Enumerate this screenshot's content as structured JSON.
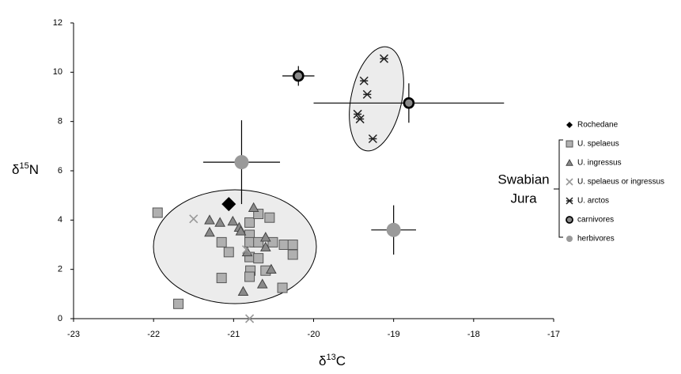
{
  "chart_data": {
    "type": "scatter",
    "xlabel": [
      "δ",
      "13",
      "C"
    ],
    "ylabel": [
      "δ",
      "15",
      "N"
    ],
    "xlim": [
      -23,
      -17
    ],
    "xticks": [
      -23,
      -22,
      -21,
      -20,
      -19,
      -18,
      -17
    ],
    "ylim": [
      0,
      12
    ],
    "yticks": [
      0,
      2,
      4,
      6,
      8,
      10,
      12
    ],
    "group_label": [
      "Swabian",
      "Jura"
    ],
    "series": [
      {
        "name": "Rochedane",
        "marker": "diamond",
        "color": "#000000",
        "x": [
          -21.06
        ],
        "values": [
          4.65
        ]
      },
      {
        "name": "U. spelaeus",
        "marker": "square",
        "color": "#b0b0b0",
        "x": [
          -21.95,
          -21.69,
          -21.15,
          -21.06,
          -21.15,
          -20.8,
          -20.8,
          -20.8,
          -20.8,
          -20.79,
          -20.8,
          -20.69,
          -20.69,
          -20.69,
          -20.55,
          -20.51,
          -20.6,
          -20.39,
          -20.37,
          -20.26,
          -20.26
        ],
        "values": [
          4.3,
          0.6,
          3.1,
          2.7,
          1.65,
          3.9,
          3.4,
          3.1,
          2.5,
          1.95,
          1.7,
          3.1,
          2.45,
          4.25,
          4.1,
          3.1,
          1.95,
          1.25,
          3.0,
          3.0,
          2.6
        ]
      },
      {
        "name": "U. ingressus",
        "marker": "triangle",
        "color": "#8a8a8a",
        "x": [
          -21.3,
          -21.17,
          -21.3,
          -21.01,
          -20.93,
          -20.91,
          -20.75,
          -20.83,
          -20.88,
          -20.64,
          -20.53,
          -20.6,
          -20.6
        ],
        "values": [
          4.0,
          3.9,
          3.5,
          3.95,
          3.7,
          3.55,
          4.5,
          2.7,
          1.1,
          1.4,
          2.0,
          2.9,
          3.3
        ]
      },
      {
        "name": "U. spelaeus or ingressus",
        "marker": "x",
        "color": "#999999",
        "x": [
          -21.5,
          -20.8,
          -20.84
        ],
        "values": [
          4.05,
          0,
          2.8
        ]
      },
      {
        "name": "U. arctos",
        "marker": "asterisk",
        "color": "#222222",
        "x": [
          -19.12,
          -19.37,
          -19.33,
          -19.45,
          -19.42,
          -19.26
        ],
        "values": [
          10.55,
          9.65,
          9.1,
          8.3,
          8.1,
          7.3
        ]
      },
      {
        "name": "carnivores",
        "marker": "ring",
        "color": "#8a8a8a",
        "x": [
          -20.19,
          -18.81
        ],
        "values": [
          9.85,
          8.75
        ],
        "xerr": [
          0.2,
          1.19
        ],
        "yerr": [
          0.4,
          0.8
        ]
      },
      {
        "name": "herbivores",
        "marker": "circle",
        "color": "#9a9a9a",
        "x": [
          -20.9,
          -19.0
        ],
        "values": [
          6.35,
          3.6
        ],
        "xerr": [
          0.48,
          0.28
        ],
        "yerr": [
          1.7,
          1.0
        ]
      }
    ]
  }
}
